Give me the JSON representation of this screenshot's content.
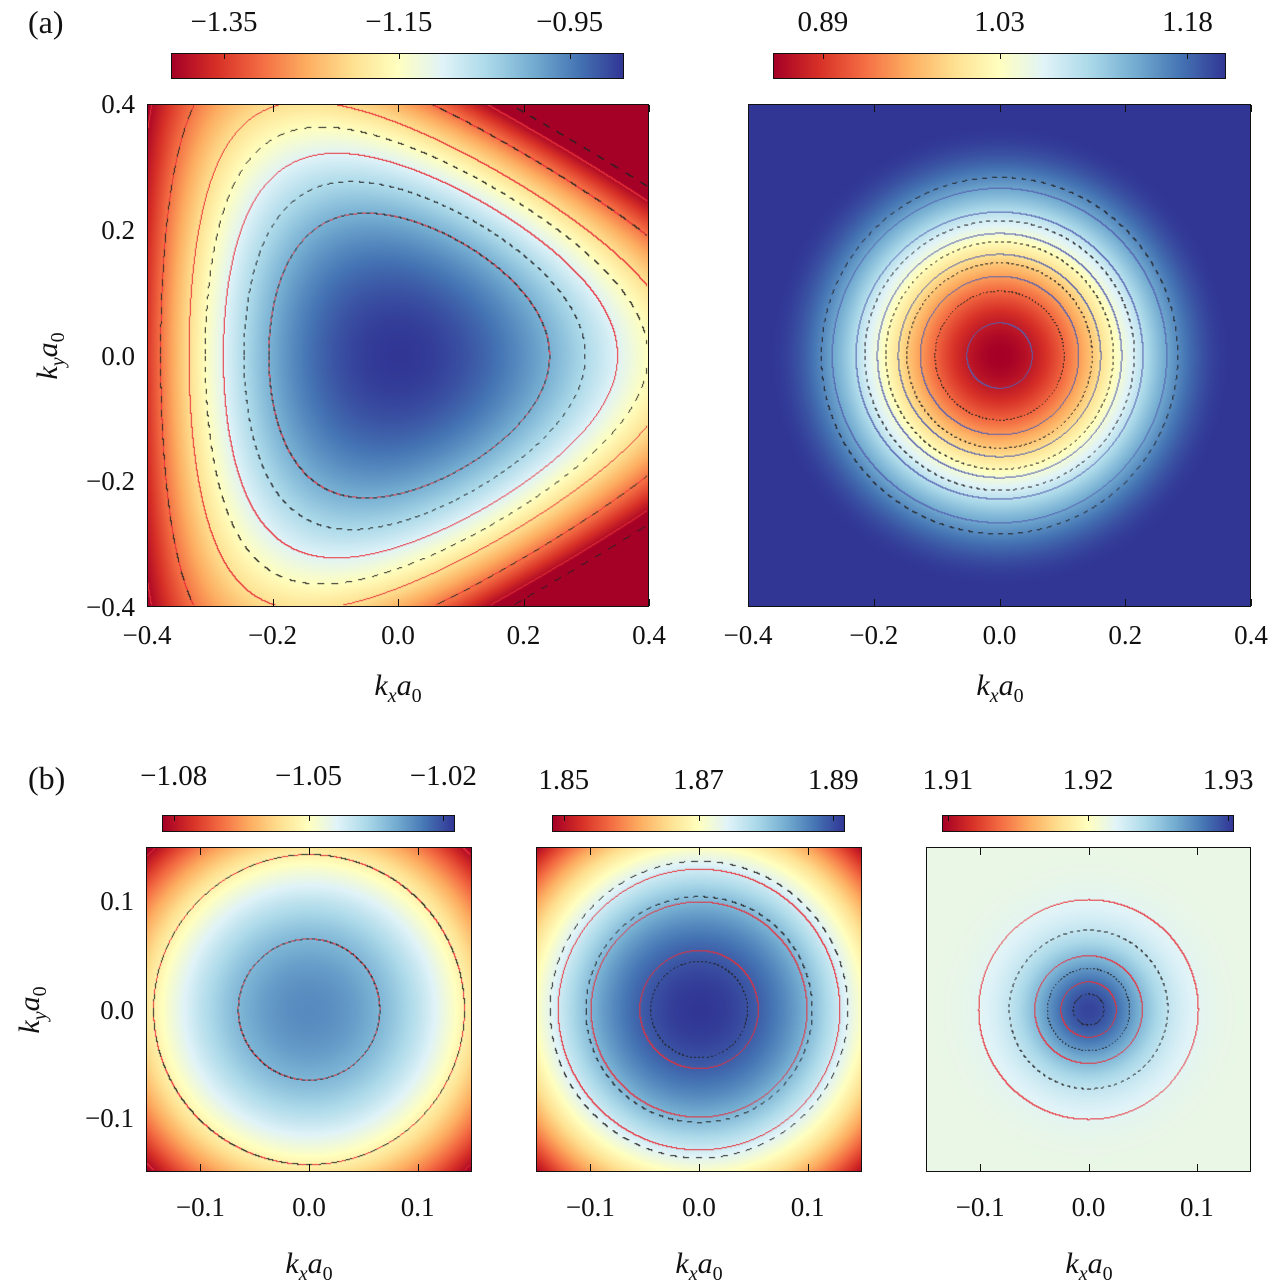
{
  "panel_labels": {
    "a": "(a)",
    "b": "(b)"
  },
  "axis_labels": {
    "x": "k",
    "x_sub": "x",
    "y": "k",
    "y_sub": "y",
    "a": "a",
    "a_sub": "0"
  },
  "colormap": "RdYlBu (red = low, blue = high)",
  "contour_styles": {
    "solid": "#e8303a",
    "dashed": "#222222",
    "right_solid": "#5560b0"
  },
  "chart_data": [
    {
      "type": "heatmap",
      "panel": "(a) left",
      "xlim": [
        -0.4,
        0.4
      ],
      "ylim": [
        -0.4,
        0.4
      ],
      "xticks": [
        "−0.4",
        "−0.2",
        "0.0",
        "0.2",
        "0.4"
      ],
      "yticks": [
        "0.4",
        "0.2",
        "0.0",
        "−0.2",
        "−0.4"
      ],
      "colorbar": {
        "range": [
          -1.41,
          -0.89
        ],
        "ticks": [
          "−1.35",
          "−1.15",
          "−0.95"
        ]
      },
      "description_shape": "triangular, max at center"
    },
    {
      "type": "heatmap",
      "panel": "(a) right",
      "xlim": [
        -0.4,
        0.4
      ],
      "ylim": [
        -0.4,
        0.4
      ],
      "xticks": [
        "−0.4",
        "−0.2",
        "0.0",
        "0.2",
        "0.4"
      ],
      "colorbar": {
        "range": [
          0.85,
          1.22
        ],
        "ticks": [
          "0.89",
          "1.03",
          "1.18"
        ]
      }
    },
    {
      "type": "heatmap",
      "panel": "(b) left",
      "xlim": [
        -0.15,
        0.15
      ],
      "ylim": [
        -0.15,
        0.15
      ],
      "xticks": [
        "−0.1",
        "0.0",
        "0.1"
      ],
      "yticks": [
        "0.1",
        "0.0",
        "−0.1"
      ],
      "colorbar": {
        "range": [
          -1.087,
          -1.015
        ],
        "ticks": [
          "−1.08",
          "−1.05",
          "−1.02"
        ]
      }
    },
    {
      "type": "heatmap",
      "panel": "(b) middle",
      "xlim": [
        -0.15,
        0.15
      ],
      "ylim": [
        -0.15,
        0.15
      ],
      "xticks": [
        "−0.1",
        "0.0",
        "0.1"
      ],
      "colorbar": {
        "range": [
          1.847,
          1.893
        ],
        "ticks": [
          "1.85",
          "1.87",
          "1.89"
        ]
      }
    },
    {
      "type": "heatmap",
      "panel": "(b) right",
      "xlim": [
        -0.15,
        0.15
      ],
      "ylim": [
        -0.15,
        0.15
      ],
      "xticks": [
        "−0.1",
        "0.0",
        "0.1"
      ],
      "colorbar": {
        "range": [
          1.9095,
          1.9315
        ],
        "ticks": [
          "1.91",
          "1.92",
          "1.93"
        ]
      }
    }
  ]
}
